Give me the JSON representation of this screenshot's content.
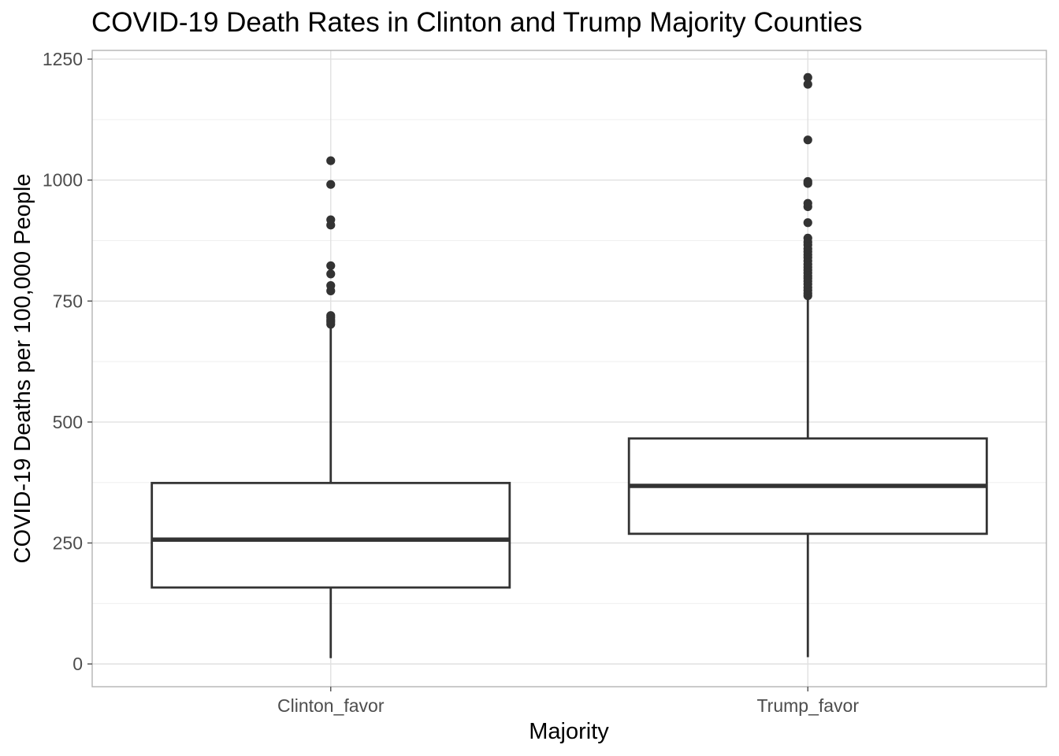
{
  "chart_data": {
    "type": "boxplot",
    "title": "COVID-19 Death Rates in Clinton and Trump Majority Counties",
    "xlabel": "Majority",
    "ylabel": "COVID-19 Deaths per 100,000 People",
    "ylim": [
      -47,
      1268
    ],
    "yticks": [
      0,
      250,
      500,
      750,
      1000,
      1250
    ],
    "grid": true,
    "categories": [
      "Clinton_favor",
      "Trump_favor"
    ],
    "boxes": [
      {
        "category": "Clinton_favor",
        "whisker_low": 12,
        "q1": 158,
        "median": 257,
        "q3": 374,
        "whisker_high": 700,
        "outliers": [
          702,
          707,
          711,
          716,
          720,
          771,
          782,
          806,
          823,
          907,
          918,
          991,
          1040
        ]
      },
      {
        "category": "Trump_favor",
        "whisker_low": 14,
        "q1": 269,
        "median": 368,
        "q3": 466,
        "whisker_high": 757,
        "outliers": [
          761,
          766,
          772,
          778,
          785,
          791,
          797,
          802,
          808,
          814,
          820,
          826,
          833,
          840,
          846,
          852,
          858,
          866,
          872,
          880,
          912,
          945,
          952,
          993,
          997,
          1083,
          1198,
          1212
        ]
      }
    ]
  }
}
